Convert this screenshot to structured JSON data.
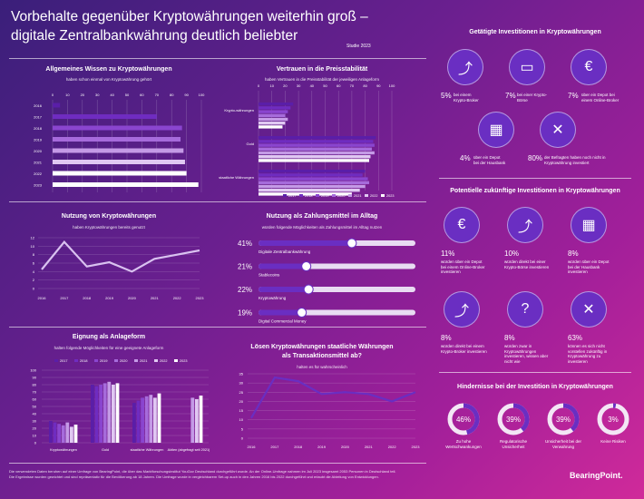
{
  "header": {
    "title_line1": "Vorbehalte gegenüber Kryptowährungen weiterhin groß –",
    "title_line2": "digitale Zentralbankwährung deutlich beliebter",
    "study": "Studie 2023"
  },
  "colors": {
    "bg_start": "#3a1f7a",
    "bg_end": "#d02a9a",
    "accent": "#7b35c7",
    "bar_light": "#d9c2f0",
    "series": [
      "#5a1ea8",
      "#6f2cc0",
      "#8a45cf",
      "#a66bdb",
      "#c49ae6",
      "#e0c8f2",
      "#ffffff"
    ]
  },
  "years": [
    "2017",
    "2018",
    "2019",
    "2020",
    "2021",
    "2022",
    "2023"
  ],
  "chart_knowledge": {
    "title": "Allgemeines Wissen zu Kryptowährungen",
    "subtitle": "haben schon einmal von Kryptowährung gehört",
    "chart_data": {
      "type": "bar",
      "categories": [
        "2016",
        "2017",
        "2018",
        "2019",
        "2020",
        "2021",
        "2022",
        "2023"
      ],
      "values": [
        5,
        70,
        87,
        86,
        88,
        89,
        90,
        98
      ],
      "xlim": [
        0,
        100
      ],
      "ticks": [
        "0",
        "10",
        "20",
        "30",
        "40",
        "50",
        "60",
        "70",
        "80",
        "90",
        "100"
      ]
    }
  },
  "chart_trust": {
    "title": "Vertrauen in die Preisstabilität",
    "subtitle": "haben Vertrauen in die Preisstabilität der jeweiligen Anlageform",
    "chart_data": {
      "type": "bar",
      "categories": [
        "Krypto-währungen",
        "Gold",
        "staatliche Währungen"
      ],
      "series": [
        {
          "name": "2017",
          "values": [
            26,
            88,
            80
          ]
        },
        {
          "name": "2018",
          "values": [
            24,
            86,
            78
          ]
        },
        {
          "name": "2019",
          "values": [
            22,
            87,
            82
          ]
        },
        {
          "name": "2020",
          "values": [
            20,
            85,
            83
          ]
        },
        {
          "name": "2021",
          "values": [
            22,
            87,
            80
          ]
        },
        {
          "name": "2022",
          "values": [
            20,
            84,
            76
          ]
        },
        {
          "name": "2023",
          "values": [
            18,
            83,
            70
          ]
        }
      ],
      "xlim": [
        0,
        100
      ],
      "ticks": [
        "0",
        "10",
        "20",
        "30",
        "40",
        "50",
        "60",
        "70",
        "80",
        "90",
        "100"
      ]
    }
  },
  "chart_usage": {
    "title": "Nutzung von Kryptowährungen",
    "subtitle": "haben Kryptowährungen bereits genutzt",
    "chart_data": {
      "type": "line",
      "x": [
        "2016",
        "2017",
        "2018",
        "2019",
        "2020",
        "2021",
        "2022",
        "2023"
      ],
      "y": [
        4.5,
        11,
        5.2,
        6.2,
        4,
        7,
        8,
        9
      ],
      "ylim": [
        0,
        12
      ],
      "yticks": [
        "0",
        "2",
        "4",
        "6",
        "8",
        "10",
        "12"
      ]
    }
  },
  "chart_payment": {
    "title": "Nutzung als Zahlungsmittel im Alltag",
    "subtitle": "würden folgende Möglichkeiten als Zahlungsmittel im Alltag nutzen",
    "chart_data": {
      "type": "bar",
      "categories": [
        "Digitale Zentralbankwährung",
        "Stablecoins",
        "Kryptowährung",
        "Digital Commercial Money"
      ],
      "values": [
        41,
        21,
        22,
        19
      ],
      "labels": [
        "41%",
        "21%",
        "22%",
        "19%"
      ]
    }
  },
  "chart_investment": {
    "title": "Eignung als Anlageform",
    "subtitle": "halten folgende Möglichkeiten für eine geeignete Anlageform",
    "chart_data": {
      "type": "bar",
      "categories": [
        "Kryptowährungen",
        "Gold",
        "staatliche Währungen",
        "Aktien (abgefragt seit 2021)"
      ],
      "series": [
        {
          "name": "2017",
          "values": [
            30,
            80,
            55,
            null
          ]
        },
        {
          "name": "2018",
          "values": [
            28,
            78,
            58,
            null
          ]
        },
        {
          "name": "2019",
          "values": [
            26,
            80,
            62,
            null
          ]
        },
        {
          "name": "2020",
          "values": [
            24,
            82,
            64,
            null
          ]
        },
        {
          "name": "2021",
          "values": [
            28,
            84,
            66,
            62
          ]
        },
        {
          "name": "2022",
          "values": [
            22,
            80,
            62,
            60
          ]
        },
        {
          "name": "2023",
          "values": [
            25,
            82,
            68,
            65
          ]
        }
      ],
      "ylim": [
        0,
        100
      ],
      "yticks": [
        "0",
        "10",
        "20",
        "30",
        "40",
        "50",
        "60",
        "70",
        "80",
        "90",
        "100"
      ]
    }
  },
  "chart_currency": {
    "title": "Lösen Kryptowährungen staatliche Währungen",
    "title2": "als Transaktionsmittel ab?",
    "subtitle": "halten es für wahrscheinlich",
    "chart_data": {
      "type": "line",
      "x": [
        "2016",
        "2017",
        "2018",
        "2019",
        "2020",
        "2021",
        "2022",
        "2023"
      ],
      "y": [
        11,
        33,
        31,
        24,
        25,
        24,
        20,
        25
      ],
      "ylim": [
        0,
        35
      ],
      "yticks": [
        "0",
        "5",
        "10",
        "15",
        "20",
        "25",
        "30",
        "35"
      ]
    }
  },
  "done": {
    "title": "Getätigte Investitionen in Kryptowährungen",
    "items": [
      {
        "icon": "person-chart-icon",
        "glyph": "⤴",
        "pct": "5%",
        "text": "bei einem Krypto-Broker"
      },
      {
        "icon": "screen-chart-icon",
        "glyph": "▭",
        "pct": "7%",
        "text": "bei einer Krypto-Börse"
      },
      {
        "icon": "euro-screen-icon",
        "glyph": "€",
        "pct": "7%",
        "text": "über ein Depot bei einem Online-Broker"
      },
      {
        "icon": "bank-icon",
        "glyph": "▦",
        "pct": "4%",
        "text": "über ein Depot bei der Hausbank"
      },
      {
        "icon": "cross-icon",
        "glyph": "✕",
        "pct": "80%",
        "text": "der Befragten haben noch nicht in Kryptowährung investiert"
      }
    ]
  },
  "potential": {
    "title": "Potentielle zukünftige Investitionen in Kryptowährungen",
    "items": [
      {
        "icon": "euro-screen-icon",
        "glyph": "€",
        "pct": "11%",
        "text": "würden über ein Depot bei einem Online-Broker investieren"
      },
      {
        "icon": "person-chart-icon",
        "glyph": "⤴",
        "pct": "10%",
        "text": "würden direkt bei einer Krypto-Börse investieren"
      },
      {
        "icon": "bank-icon",
        "glyph": "▦",
        "pct": "8%",
        "text": "würden über ein Depot bei der Hausbank investieren"
      },
      {
        "icon": "person-chart-icon",
        "glyph": "⤴",
        "pct": "8%",
        "text": "würden direkt bei einem Krypto-Broker investieren"
      },
      {
        "icon": "question-icon",
        "glyph": "?",
        "pct": "8%",
        "text": "würden zwar in Kryptowährungen investieren, wissen aber nicht wie"
      },
      {
        "icon": "cross-icon",
        "glyph": "✕",
        "pct": "63%",
        "text": "können es sich nicht vorstellen zukünftig in Kryptowährung zu investieren"
      }
    ]
  },
  "obstacles": {
    "title": "Hindernisse bei der Investition in Kryptowährungen",
    "items": [
      {
        "pct": "46%",
        "value": 46,
        "text": "Zu hohe Wertschwankungen"
      },
      {
        "pct": "39%",
        "value": 39,
        "text": "Regulatorische Unsicherheit"
      },
      {
        "pct": "39%",
        "value": 39,
        "text": "Unsicherheit bei der Verwahrung"
      },
      {
        "pct": "3%",
        "value": 3,
        "text": "Keine Risiken"
      }
    ]
  },
  "footer": {
    "line1": "Die verwendeten Daten beruhen auf einer Umfrage von BearingPoint, die über das Marktforschungsinstitut YouGov Deutschland durchgeführt wurde. An der Online-Umfrage nahmen im Juli 2023 insgesamt 2053 Personen in Deutschland teil.",
    "line2": "Die Ergebnisse wurden gewichtet und sind repräsentativ für die Bevölkerung ab 18 Jahren. Die Umfrage wurde in vergleichbarem Set-up auch in den Jahren 2016 bis 2022 durchgeführt und erlaubt die Ableitung von Entwicklungen."
  },
  "logo": "BearingPoint."
}
